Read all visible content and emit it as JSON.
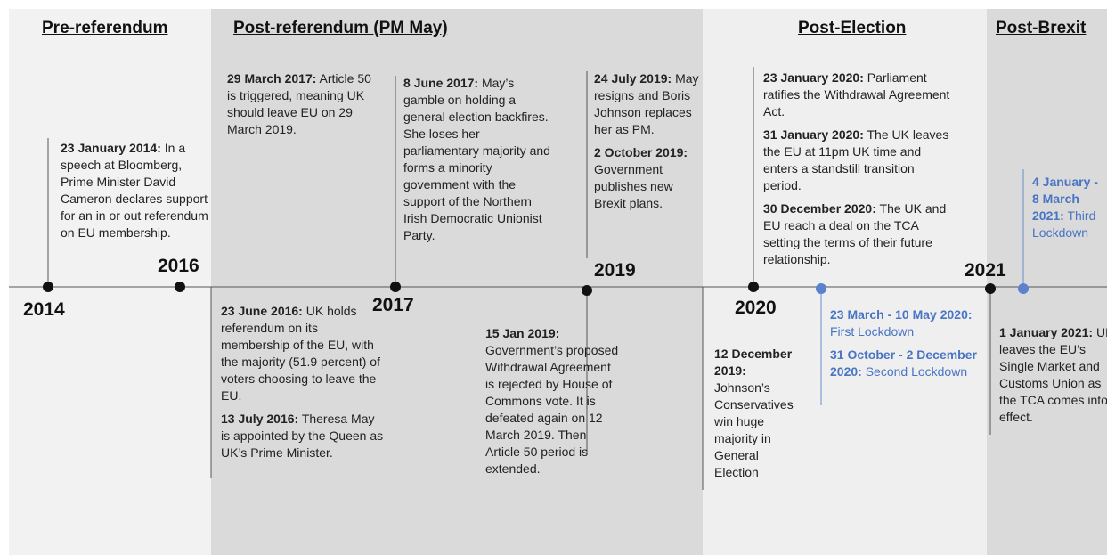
{
  "periods": [
    "Pre-referendum",
    "Post-referendum (PM May)",
    "Post-Election",
    "Post-Brexit"
  ],
  "years": [
    "2014",
    "2016",
    "2017",
    "2019",
    "2020",
    "2021"
  ],
  "blocks": [
    {
      "events": [
        {
          "date": "23 January 2014:",
          "text": "In a speech at Bloomberg, Prime Minister David Cameron declares support for an in or out referendum on EU membership."
        }
      ]
    },
    {
      "events": [
        {
          "date": "29 March 2017:",
          "text": "Article 50 is triggered, meaning UK should leave EU on 29 March 2019."
        }
      ]
    },
    {
      "events": [
        {
          "date": "8 June 2017:",
          "text": "May’s gamble on holding a general election backfires. She loses her parliamentary majority and forms a minority government with the support of the Northern Irish Democratic Unionist Party."
        }
      ]
    },
    {
      "events": [
        {
          "date": "24 July 2019:",
          "text": "May resigns and Boris Johnson replaces her as PM."
        },
        {
          "date": "2 October 2019:",
          "text": "Government publishes new Brexit plans."
        }
      ]
    },
    {
      "events": [
        {
          "date": "23 June 2016:",
          "text": "UK holds referendum on its membership of the EU, with the majority (51.9 percent) of voters choosing to leave the EU."
        },
        {
          "date": "13 July 2016:",
          "text": "Theresa May is appointed by the Queen as UK’s Prime Minister."
        }
      ]
    },
    {
      "events": [
        {
          "date": "15 Jan 2019:",
          "text": "Government’s proposed Withdrawal Agreement is rejected by House of Commons vote. It is defeated again on 12 March 2019. Then Article 50 period is extended."
        }
      ]
    },
    {
      "events": [
        {
          "date": "12 December 2019:",
          "text": "Johnson’s Conservatives win huge majority in General Election"
        }
      ]
    },
    {
      "events": [
        {
          "date": "23 January 2020:",
          "text": "Parliament ratifies the Withdrawal Agreement Act."
        },
        {
          "date": "31 January 2020:",
          "text": "The UK leaves the EU at 11pm UK time and enters a standstill transition period."
        },
        {
          "date": "30 December 2020:",
          "text": "The UK and EU reach a deal on the TCA setting the terms of their future relationship."
        }
      ]
    },
    {
      "events": [
        {
          "date": "23 March - 10 May 2020:",
          "text": "First Lockdown"
        },
        {
          "date": "31 October - 2 December 2020:",
          "text": "Second Lockdown"
        }
      ]
    },
    {
      "events": [
        {
          "date": "4 January - 8 March 2021:",
          "text": "Third Lockdown"
        }
      ]
    },
    {
      "events": [
        {
          "date": "1 January 2021:",
          "text": "UK leaves the EU’s Single Market and Customs Union as the TCA comes into effect."
        }
      ]
    }
  ]
}
